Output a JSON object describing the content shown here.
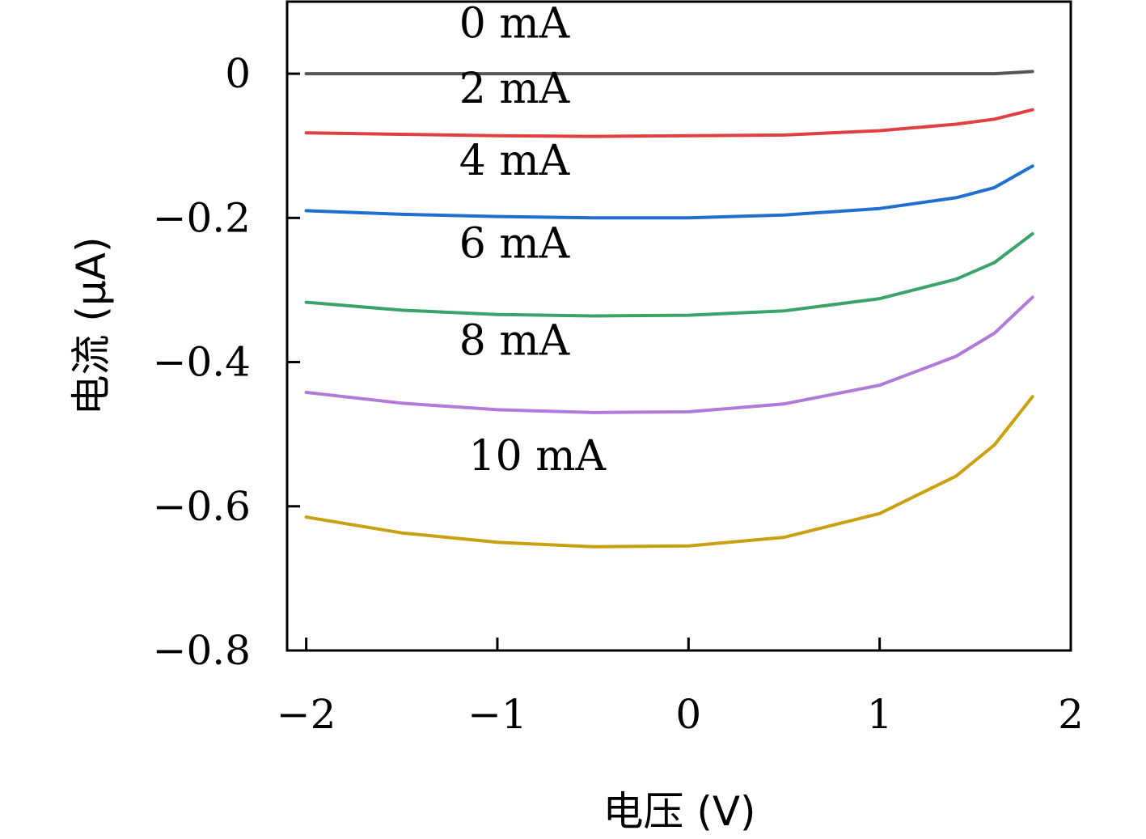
{
  "chart_data": {
    "type": "line",
    "title": "",
    "xlabel": "电压 (V)",
    "ylabel": "电流 (μA)",
    "xlim": [
      -2.1,
      2.0
    ],
    "ylim": [
      -0.8,
      0.1
    ],
    "x_ticks": [
      -2,
      -1,
      0,
      1,
      2
    ],
    "x_tick_labels": [
      "−2",
      "−1",
      "0",
      "1",
      "2"
    ],
    "y_ticks": [
      0,
      -0.2,
      -0.4,
      -0.6,
      -0.8
    ],
    "y_tick_labels": [
      "0",
      "−0.2",
      "−0.4",
      "−0.6",
      "−0.8"
    ],
    "grid": false,
    "legend": "none",
    "x": [
      -2.0,
      -1.5,
      -1.0,
      -0.5,
      0.0,
      0.5,
      1.0,
      1.4,
      1.6,
      1.8
    ],
    "series": [
      {
        "name": "0 mA",
        "color": "#555555",
        "label_pos": [
          -1.2,
          0.05
        ],
        "values": [
          0.0,
          0.0,
          0.0,
          0.0,
          0.0,
          0.0,
          0.0,
          0.0,
          0.0,
          0.003
        ]
      },
      {
        "name": "2 mA",
        "color": "#e04040",
        "label_pos": [
          -1.2,
          -0.04
        ],
        "values": [
          -0.082,
          -0.084,
          -0.086,
          -0.087,
          -0.086,
          -0.085,
          -0.079,
          -0.07,
          -0.063,
          -0.05
        ]
      },
      {
        "name": "4 mA",
        "color": "#1f6fd0",
        "label_pos": [
          -1.2,
          -0.14
        ],
        "values": [
          -0.19,
          -0.195,
          -0.198,
          -0.2,
          -0.2,
          -0.196,
          -0.187,
          -0.172,
          -0.158,
          -0.128
        ]
      },
      {
        "name": "6 mA",
        "color": "#3aa36a",
        "label_pos": [
          -1.2,
          -0.255
        ],
        "values": [
          -0.317,
          -0.328,
          -0.334,
          -0.336,
          -0.335,
          -0.329,
          -0.312,
          -0.285,
          -0.262,
          -0.222
        ]
      },
      {
        "name": "8 mA",
        "color": "#b07ad8",
        "label_pos": [
          -1.2,
          -0.39
        ],
        "values": [
          -0.442,
          -0.457,
          -0.466,
          -0.47,
          -0.469,
          -0.458,
          -0.432,
          -0.392,
          -0.36,
          -0.31
        ]
      },
      {
        "name": "10 mA",
        "color": "#c8a010",
        "label_pos": [
          -1.15,
          -0.55
        ],
        "values": [
          -0.615,
          -0.637,
          -0.65,
          -0.656,
          -0.655,
          -0.643,
          -0.61,
          -0.558,
          -0.515,
          -0.448
        ]
      }
    ]
  }
}
